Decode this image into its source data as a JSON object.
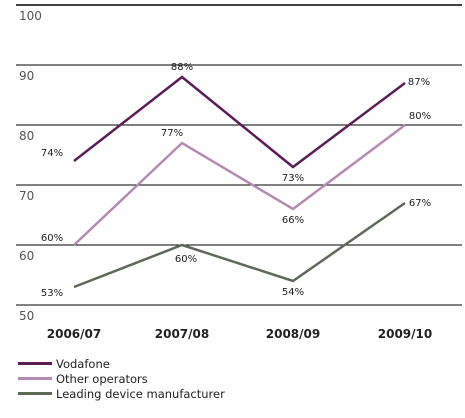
{
  "chart_data": {
    "type": "line",
    "title": "",
    "xlabel": "",
    "ylabel": "",
    "categories": [
      "2006/07",
      "2007/08",
      "2008/09",
      "2009/10"
    ],
    "ylim": [
      50,
      100
    ],
    "yticks": [
      50,
      60,
      70,
      80,
      90,
      100
    ],
    "grid": true,
    "legend_position": "bottom-left",
    "series": [
      {
        "name": "Vodafone",
        "color": "#5a1e55",
        "values": [
          74,
          88,
          73,
          87
        ],
        "labels": [
          "74%",
          "88%",
          "73%",
          "87%"
        ]
      },
      {
        "name": "Other operators",
        "color": "#b48bb0",
        "values": [
          60,
          77,
          66,
          80
        ],
        "labels": [
          "60%",
          "77%",
          "66%",
          "80%"
        ]
      },
      {
        "name": "Leading device manufacturer",
        "color": "#5d6a58",
        "values": [
          53,
          60,
          54,
          67
        ],
        "labels": [
          "53%",
          "60%",
          "54%",
          "67%"
        ]
      }
    ]
  }
}
